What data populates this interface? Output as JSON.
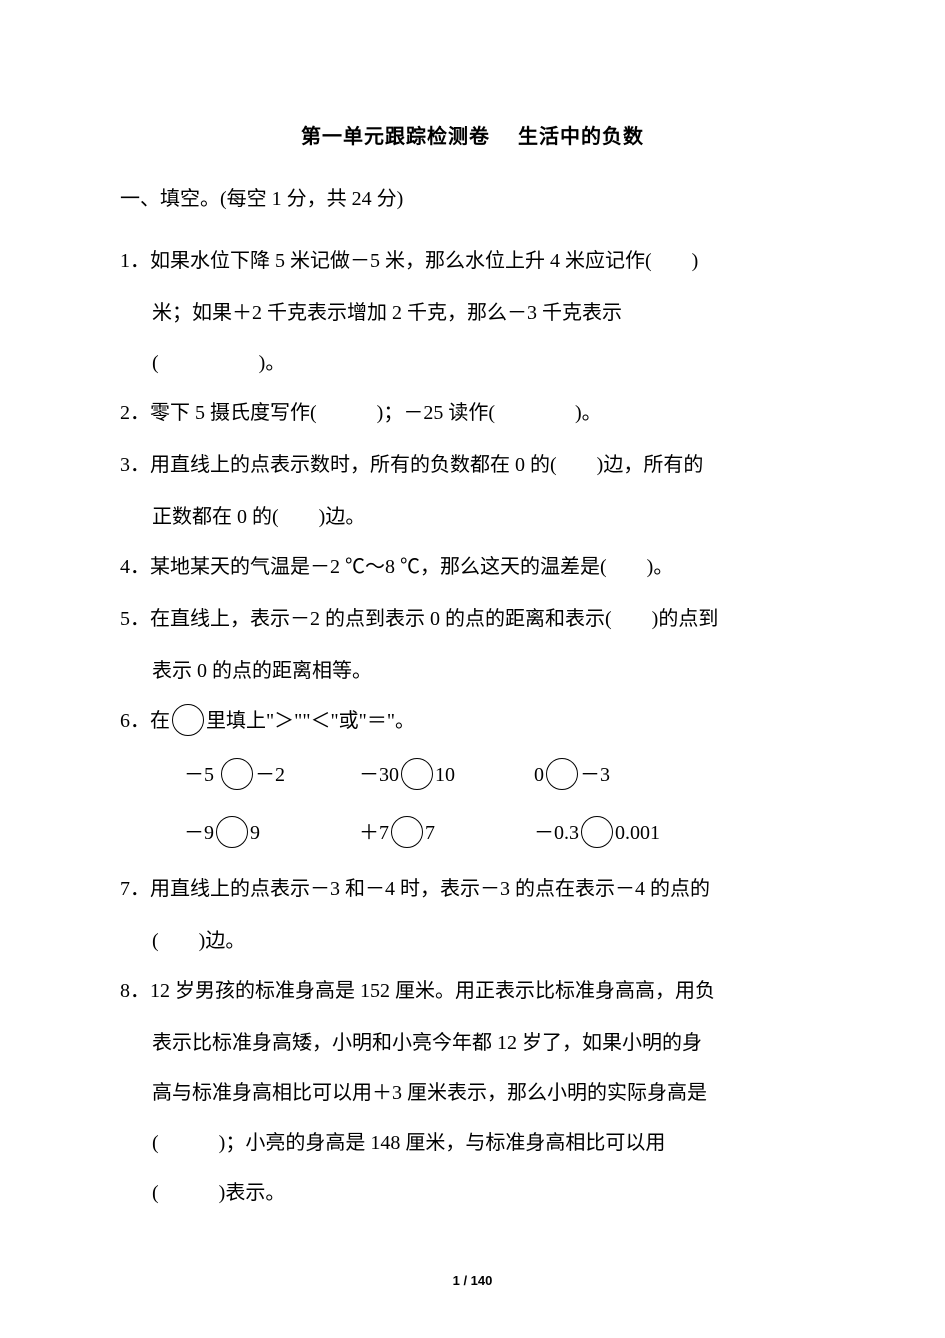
{
  "title_left": "第一单元跟踪检测卷",
  "title_right": "生活中的负数",
  "section1_head": "一、填空。(每空 1 分，共 24 分)",
  "q1_l1": "1．如果水位下降 5 米记做－5 米，那么水位上升 4 米应记作(　　)",
  "q1_l2": "米；如果＋2 千克表示增加 2 千克，那么－3 千克表示",
  "q1_l3": "(　　　　　)。",
  "q2": "2．零下 5 摄氏度写作(　　　)；－25 读作(　　　　)。",
  "q3_l1": "3．用直线上的点表示数时，所有的负数都在 0 的(　　)边，所有的",
  "q3_l2": "正数都在 0 的(　　)边。",
  "q4": "4．某地某天的气温是－2 ℃～8 ℃，那么这天的温差是(　　)。",
  "q5_l1": "5．在直线上，表示－2 的点到表示 0 的点的距离和表示(　　)的点到",
  "q5_l2": "表示 0 的点的距离相等。",
  "q6_head_a": "6．在",
  "q6_head_b": "里填上\"＞\"\"＜\"或\"＝\"。",
  "q6_r1": {
    "a_l": "－5",
    "a_r": "－2",
    "b_l": "－30",
    "b_r": "10",
    "c_l": "0",
    "c_r": "－3"
  },
  "q6_r2": {
    "a_l": "－9",
    "a_r": "9",
    "b_l": "＋7",
    "b_r": "7",
    "c_l": "－0.3",
    "c_r": "0.001"
  },
  "q7_l1": "7．用直线上的点表示－3 和－4 时，表示－3 的点在表示－4 的点的",
  "q7_l2": "(　　)边。",
  "q8_l1": "8．12 岁男孩的标准身高是 152 厘米。用正表示比标准身高高，用负",
  "q8_l2": "表示比标准身高矮，小明和小亮今年都 12 岁了，如果小明的身",
  "q8_l3": "高与标准身高相比可以用＋3 厘米表示，那么小明的实际身高是",
  "q8_l4": "(　　　)；小亮的身高是 148 厘米，与标准身高相比可以用",
  "q8_l5": "(　　　)表示。",
  "footer": "1 / 140",
  "colors": {
    "text": "#000000",
    "bg": "#ffffff"
  },
  "fontsize": {
    "title": 20,
    "body": 20,
    "footer": 13
  }
}
